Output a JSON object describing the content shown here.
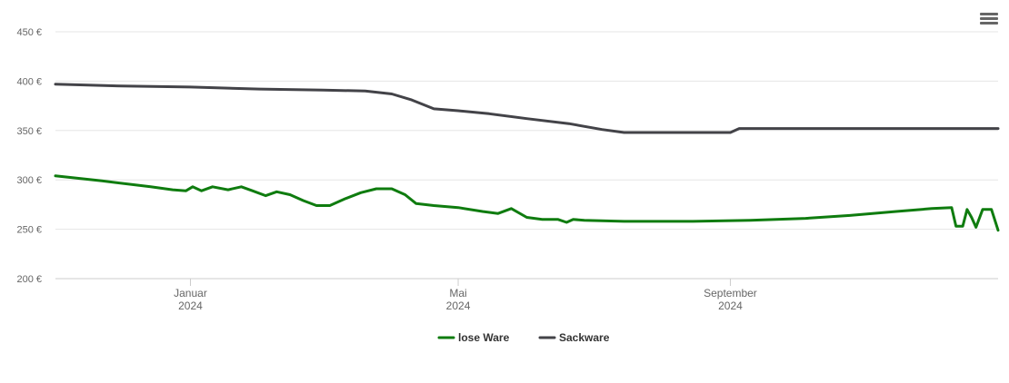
{
  "menu": {
    "icon": "hamburger-menu-icon"
  },
  "chart_data": {
    "type": "line",
    "title": "",
    "xlabel": "",
    "ylabel": "",
    "ylim": [
      200,
      450
    ],
    "y_ticks": [
      200,
      250,
      300,
      350,
      400,
      450
    ],
    "y_tick_suffix": " €",
    "x_range": [
      "2023-11-01",
      "2024-12-31"
    ],
    "x_ticks": [
      {
        "date": "2024-01-01",
        "label": "Januar",
        "year": "2024"
      },
      {
        "date": "2024-05-01",
        "label": "Mai",
        "year": "2024"
      },
      {
        "date": "2024-09-01",
        "label": "September",
        "year": "2024"
      }
    ],
    "grid": "horizontal",
    "legend": "bottom-center",
    "series": [
      {
        "name": "lose Ware",
        "color": "#0f7c0f",
        "points": [
          [
            "2023-11-01",
            304
          ],
          [
            "2023-11-22",
            299
          ],
          [
            "2023-12-14",
            293
          ],
          [
            "2023-12-24",
            290
          ],
          [
            "2023-12-30",
            289
          ],
          [
            "2024-01-02",
            293
          ],
          [
            "2024-01-06",
            289
          ],
          [
            "2024-01-11",
            293
          ],
          [
            "2024-01-18",
            290
          ],
          [
            "2024-01-24",
            293
          ],
          [
            "2024-01-29",
            289
          ],
          [
            "2024-02-04",
            284
          ],
          [
            "2024-02-09",
            288
          ],
          [
            "2024-02-15",
            285
          ],
          [
            "2024-02-21",
            279
          ],
          [
            "2024-02-27",
            274
          ],
          [
            "2024-03-04",
            274
          ],
          [
            "2024-03-11",
            281
          ],
          [
            "2024-03-18",
            287
          ],
          [
            "2024-03-25",
            291
          ],
          [
            "2024-04-01",
            291
          ],
          [
            "2024-04-07",
            285
          ],
          [
            "2024-04-12",
            276
          ],
          [
            "2024-04-20",
            274
          ],
          [
            "2024-05-01",
            272
          ],
          [
            "2024-05-12",
            268
          ],
          [
            "2024-05-19",
            266
          ],
          [
            "2024-05-25",
            271
          ],
          [
            "2024-06-01",
            262
          ],
          [
            "2024-06-08",
            260
          ],
          [
            "2024-06-15",
            260
          ],
          [
            "2024-06-19",
            257
          ],
          [
            "2024-06-22",
            260
          ],
          [
            "2024-06-27",
            259
          ],
          [
            "2024-07-15",
            258
          ],
          [
            "2024-08-15",
            258
          ],
          [
            "2024-09-10",
            259
          ],
          [
            "2024-10-05",
            261
          ],
          [
            "2024-10-25",
            264
          ],
          [
            "2024-11-15",
            268
          ],
          [
            "2024-12-01",
            271
          ],
          [
            "2024-12-10",
            272
          ],
          [
            "2024-12-12",
            253
          ],
          [
            "2024-12-15",
            253
          ],
          [
            "2024-12-17",
            270
          ],
          [
            "2024-12-19",
            262
          ],
          [
            "2024-12-21",
            252
          ],
          [
            "2024-12-24",
            270
          ],
          [
            "2024-12-28",
            270
          ],
          [
            "2024-12-31",
            249
          ]
        ]
      },
      {
        "name": "Sackware",
        "color": "#434348",
        "points": [
          [
            "2023-11-01",
            397
          ],
          [
            "2023-12-01",
            395
          ],
          [
            "2024-01-01",
            394
          ],
          [
            "2024-02-01",
            392
          ],
          [
            "2024-03-01",
            391
          ],
          [
            "2024-03-20",
            390
          ],
          [
            "2024-04-01",
            387
          ],
          [
            "2024-04-10",
            381
          ],
          [
            "2024-04-20",
            372
          ],
          [
            "2024-05-01",
            370
          ],
          [
            "2024-05-15",
            367
          ],
          [
            "2024-06-01",
            362
          ],
          [
            "2024-06-20",
            357
          ],
          [
            "2024-07-05",
            351
          ],
          [
            "2024-07-15",
            348
          ],
          [
            "2024-08-01",
            348
          ],
          [
            "2024-08-20",
            348
          ],
          [
            "2024-09-01",
            348
          ],
          [
            "2024-09-05",
            352
          ],
          [
            "2024-10-01",
            352
          ],
          [
            "2024-11-01",
            352
          ],
          [
            "2024-12-01",
            352
          ],
          [
            "2024-12-31",
            352
          ]
        ]
      }
    ]
  }
}
